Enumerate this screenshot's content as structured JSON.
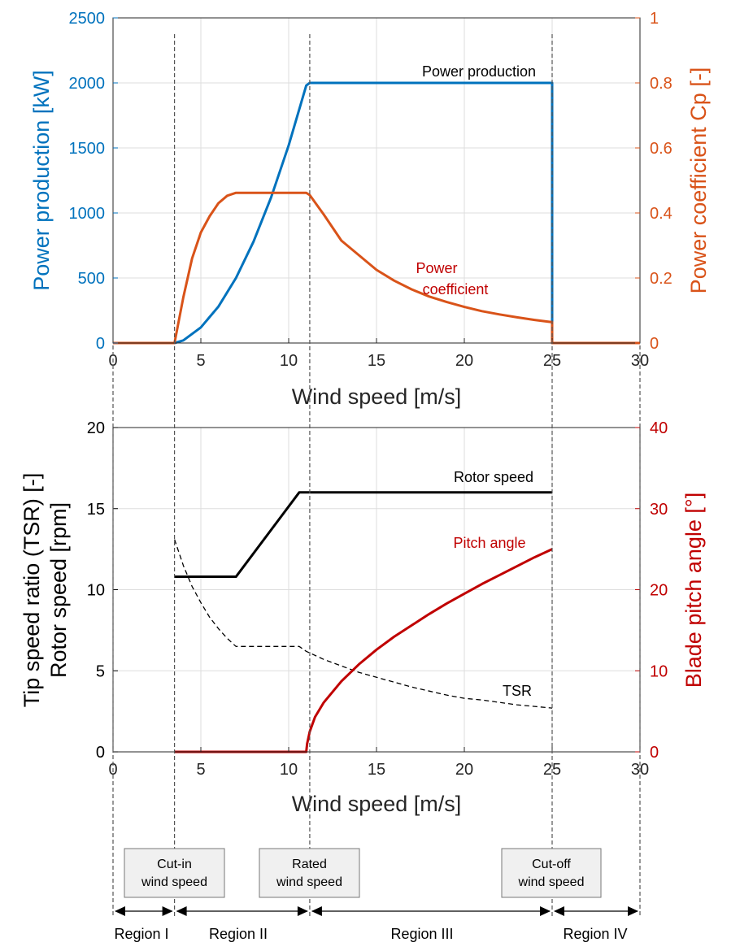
{
  "colors": {
    "power": "#0072BD",
    "cp": "#D95319",
    "pitch": "#C00000",
    "black": "#000000",
    "grid": "#DDDDDD",
    "box_fill": "#F0F0F0"
  },
  "chart_data": [
    {
      "type": "line",
      "xlabel": "Wind speed [m/s]",
      "ylabel_left": "Power production [kW]",
      "ylabel_right": "Power coefficient Cp [-]",
      "xlim": [
        0,
        30
      ],
      "ylim_left": [
        0,
        2500
      ],
      "ylim_right": [
        0,
        1
      ],
      "xticks": [
        0,
        5,
        10,
        15,
        20,
        25,
        30
      ],
      "yticks_left": [
        0,
        500,
        1000,
        1500,
        2000,
        2500
      ],
      "yticks_right": [
        0,
        0.2,
        0.4,
        0.6,
        0.8,
        1
      ],
      "grid": true,
      "annotations": [
        "Power production",
        "Power",
        "coefficient"
      ],
      "series": [
        {
          "name": "Power production",
          "axis": "left",
          "x": [
            0,
            3.5,
            4,
            5,
            6,
            7,
            8,
            9,
            10,
            11,
            11.2,
            25,
            25,
            30
          ],
          "y": [
            0,
            0,
            20,
            120,
            280,
            500,
            780,
            1120,
            1520,
            1980,
            2000,
            2000,
            0,
            0
          ]
        },
        {
          "name": "Power coefficient",
          "axis": "right",
          "x": [
            0,
            3.5,
            4,
            4.5,
            5,
            5.5,
            6,
            6.5,
            7,
            11,
            11.2,
            12,
            13,
            14,
            15,
            16,
            17,
            18,
            19,
            20,
            21,
            22,
            23,
            24,
            25,
            25,
            30
          ],
          "y": [
            0,
            0,
            0.14,
            0.26,
            0.34,
            0.39,
            0.43,
            0.453,
            0.462,
            0.462,
            0.455,
            0.395,
            0.315,
            0.27,
            0.225,
            0.192,
            0.165,
            0.143,
            0.126,
            0.111,
            0.098,
            0.088,
            0.079,
            0.071,
            0.064,
            0,
            0
          ]
        }
      ]
    },
    {
      "type": "line",
      "xlabel": "Wind speed [m/s]",
      "ylabel_left_line1": "Tip speed ratio (TSR) [-]",
      "ylabel_left_line2": "Rotor speed [rpm]",
      "ylabel_right": "Blade pitch angle [°]",
      "xlim": [
        0,
        30
      ],
      "ylim_left": [
        0,
        20
      ],
      "ylim_right": [
        0,
        40
      ],
      "xticks": [
        0,
        5,
        10,
        15,
        20,
        25,
        30
      ],
      "yticks_left": [
        0,
        5,
        10,
        15,
        20
      ],
      "yticks_right": [
        0,
        10,
        20,
        30,
        40
      ],
      "grid": true,
      "annotations": [
        "Rotor speed",
        "Pitch angle",
        "TSR"
      ],
      "series": [
        {
          "name": "Rotor speed",
          "axis": "left",
          "x": [
            3.5,
            7,
            10.6,
            25
          ],
          "y": [
            10.8,
            10.8,
            16,
            16
          ]
        },
        {
          "name": "TSR",
          "axis": "left",
          "style": "dashed",
          "x": [
            3.5,
            4,
            4.5,
            5,
            5.5,
            6,
            6.5,
            7,
            10.6,
            11,
            12,
            13,
            14,
            15,
            16,
            17,
            18,
            19,
            20,
            21,
            22,
            23,
            24,
            25
          ],
          "y": [
            13.1,
            11.5,
            10.2,
            9.2,
            8.3,
            7.6,
            7.0,
            6.5,
            6.5,
            6.2,
            5.7,
            5.3,
            4.9,
            4.6,
            4.3,
            4.0,
            3.75,
            3.5,
            3.3,
            3.2,
            3.05,
            2.9,
            2.8,
            2.7
          ]
        },
        {
          "name": "Pitch angle",
          "axis": "right",
          "x": [
            3.5,
            11,
            11.05,
            11.2,
            11.5,
            12,
            13,
            14,
            15,
            16,
            17,
            18,
            19,
            20,
            21,
            22,
            23,
            24,
            25
          ],
          "y": [
            0,
            0,
            1.0,
            2.5,
            4.3,
            6.1,
            8.7,
            10.8,
            12.6,
            14.2,
            15.6,
            17.0,
            18.3,
            19.5,
            20.7,
            21.8,
            22.9,
            24.0,
            25.0
          ]
        }
      ]
    }
  ],
  "regions": {
    "boxes": [
      {
        "line1": "Cut-in",
        "line2": "wind speed"
      },
      {
        "line1": "Rated",
        "line2": "wind speed"
      },
      {
        "line1": "Cut-off",
        "line2": "wind speed"
      }
    ],
    "labels": [
      "Region I",
      "Region II",
      "Region III",
      "Region IV"
    ],
    "boundaries": [
      0,
      3.5,
      11.2,
      25,
      30
    ]
  }
}
